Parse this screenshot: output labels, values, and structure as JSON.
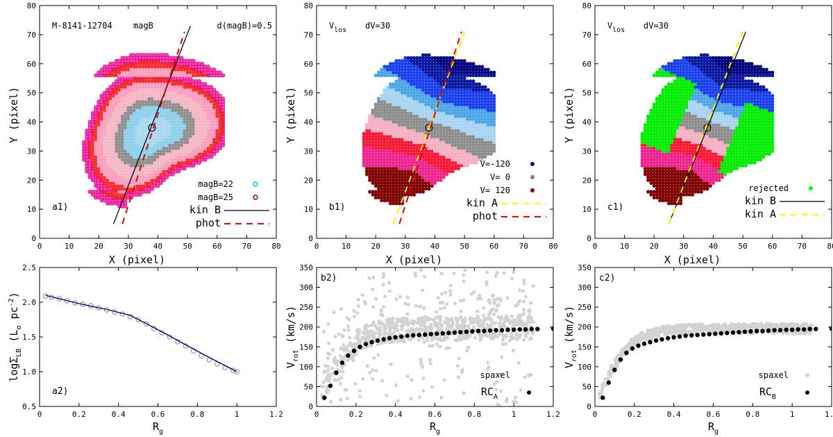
{
  "chart_data": [
    {
      "id": "a1",
      "type": "scatter",
      "panel_label": "a1)",
      "annotations": [
        "M-8141-12704",
        "magB",
        "d(magB)=0.5"
      ],
      "xlabel": "X  (pixel)",
      "ylabel": "Y  (pixel)",
      "xlim": [
        0,
        80
      ],
      "ylim": [
        0,
        80
      ],
      "xticks": [
        0,
        10,
        20,
        30,
        40,
        50,
        60,
        70,
        80
      ],
      "yticks": [
        0,
        10,
        20,
        30,
        40,
        50,
        60,
        70,
        80
      ],
      "center": [
        38,
        38
      ],
      "map": {
        "kind": "isophote",
        "rings": 7,
        "colors": [
          "#a9d8f0",
          "#8fd0ea",
          "#909090",
          "#f4b8c4",
          "#ff9fc0",
          "#ff3030",
          "#ff40c0"
        ]
      },
      "legend_position": "bottom-right",
      "legend": [
        {
          "label": "magB=22",
          "marker": "open-circle",
          "color": "#00bfff"
        },
        {
          "label": "magB=25",
          "marker": "open-circle",
          "color": "#8b0000"
        },
        {
          "label": "kin B",
          "line": "solid",
          "color": "#000000"
        },
        {
          "label": "phot",
          "line": "dashed",
          "color": "#ff0000"
        }
      ],
      "lines": [
        {
          "name": "kin B",
          "style": "solid",
          "color": "#000000",
          "x": [
            25,
            51
          ],
          "y": [
            5,
            73
          ]
        },
        {
          "name": "phot",
          "style": "dashed",
          "color": "#e00000",
          "x": [
            28,
            49
          ],
          "y": [
            5,
            71
          ]
        }
      ]
    },
    {
      "id": "b1",
      "type": "scatter",
      "panel_label": "b1)",
      "annotations": [
        "V",
        "los",
        "dV=30"
      ],
      "xlabel": "X  (pixel)",
      "ylabel": "Y  (pixel)",
      "xlim": [
        0,
        80
      ],
      "ylim": [
        0,
        80
      ],
      "xticks": [
        0,
        10,
        20,
        30,
        40,
        50,
        60,
        70,
        80
      ],
      "yticks": [
        0,
        10,
        20,
        30,
        40,
        50,
        60,
        70,
        80
      ],
      "center": [
        38,
        38
      ],
      "map": {
        "kind": "velocity",
        "rejected": false
      },
      "legend_position": "bottom-right",
      "legend": [
        {
          "label": "V=-120",
          "marker": "filled-circle",
          "color": "#00007f"
        },
        {
          "label": "V=   0",
          "marker": "filled-circle",
          "color": "#808080"
        },
        {
          "label": "V= 120",
          "marker": "filled-circle",
          "color": "#7f0000"
        },
        {
          "label": "kin A",
          "line": "dashed",
          "color": "#ffff00"
        },
        {
          "label": "phot",
          "line": "dashed",
          "color": "#ff0000"
        }
      ],
      "lines": [
        {
          "name": "kin A",
          "style": "dashed",
          "color": "#ffee00",
          "x": [
            26,
            50
          ],
          "y": [
            5,
            71
          ]
        },
        {
          "name": "phot",
          "style": "dashed",
          "color": "#e00000",
          "x": [
            28,
            49
          ],
          "y": [
            5,
            71
          ]
        }
      ]
    },
    {
      "id": "c1",
      "type": "scatter",
      "panel_label": "c1)",
      "annotations": [
        "V",
        "los",
        "dV=30"
      ],
      "xlabel": "X  (pixel)",
      "ylabel": "Y  (pixel)",
      "xlim": [
        0,
        80
      ],
      "ylim": [
        0,
        80
      ],
      "xticks": [
        0,
        10,
        20,
        30,
        40,
        50,
        60,
        70,
        80
      ],
      "yticks": [
        0,
        10,
        20,
        30,
        40,
        50,
        60,
        70,
        80
      ],
      "center": [
        38,
        38
      ],
      "map": {
        "kind": "velocity",
        "rejected": true
      },
      "legend_position": "bottom-right",
      "legend": [
        {
          "label": "rejected",
          "marker": "filled-circle",
          "color": "#00ff00"
        },
        {
          "label": "kin B",
          "line": "solid",
          "color": "#000000"
        },
        {
          "label": "kin A",
          "line": "dashed",
          "color": "#ffff00"
        }
      ],
      "lines": [
        {
          "name": "kin B",
          "style": "solid",
          "color": "#000000",
          "x": [
            25,
            51
          ],
          "y": [
            5,
            71
          ]
        },
        {
          "name": "kin A",
          "style": "dashed",
          "color": "#ffee00",
          "x": [
            25,
            50
          ],
          "y": [
            5,
            71
          ]
        }
      ]
    },
    {
      "id": "a2",
      "type": "line",
      "panel_label": "a2)",
      "xlabel": "R",
      "xlabel_sub": "g",
      "ylabel": "logΣ",
      "ylabel_sub": "LB",
      "ylabel_unit": "(L",
      "ylabel_unit_sub": "o",
      "ylabel_unit_rest": " pc",
      "ylabel_unit_sup": "-2",
      "ylabel_unit_close": ")",
      "xlim": [
        0,
        1.2
      ],
      "ylim": [
        0.5,
        2.5
      ],
      "xticks": [
        0,
        0.2,
        0.4,
        0.6,
        0.8,
        1,
        1.2
      ],
      "yticks": [
        0.5,
        1,
        1.5,
        2,
        2.5
      ],
      "series": [
        {
          "kind": "points",
          "x": [
            0.03,
            0.06,
            0.1,
            0.14,
            0.18,
            0.22,
            0.26,
            0.3,
            0.34,
            0.38,
            0.42,
            0.46,
            0.5,
            0.54,
            0.58,
            0.62,
            0.66,
            0.7,
            0.74,
            0.78,
            0.82,
            0.86,
            0.9,
            0.94,
            0.98,
            1.0
          ],
          "y": [
            2.09,
            2.07,
            2.05,
            2.02,
            1.99,
            1.97,
            1.95,
            1.92,
            1.89,
            1.86,
            1.83,
            1.79,
            1.75,
            1.69,
            1.62,
            1.56,
            1.5,
            1.43,
            1.37,
            1.3,
            1.23,
            1.17,
            1.11,
            1.06,
            1.02,
            1.0
          ]
        },
        {
          "kind": "line",
          "color": "#00007f",
          "x": [
            0.03,
            0.2,
            0.35,
            0.46,
            0.55,
            0.7,
            0.85,
            1.0
          ],
          "y": [
            2.1,
            1.98,
            1.89,
            1.81,
            1.68,
            1.45,
            1.22,
            1.0
          ]
        }
      ]
    },
    {
      "id": "b2",
      "type": "scatter",
      "panel_label": "b2)",
      "xlabel": "R",
      "xlabel_sub": "g",
      "ylabel": "V",
      "ylabel_sub": "rot",
      "ylabel_unit": "(km/s)",
      "xlim": [
        0,
        1.2
      ],
      "ylim": [
        0,
        350
      ],
      "xticks": [
        0,
        0.2,
        0.4,
        0.6,
        0.8,
        1,
        1.2
      ],
      "yticks": [
        0,
        50,
        100,
        150,
        200,
        250,
        300,
        350
      ],
      "legend_position": "bottom-right",
      "legend": [
        {
          "label": "spaxel",
          "color": "#d3d3d3"
        },
        {
          "label": "RC",
          "sub": "A",
          "color": "#000000"
        }
      ],
      "scatter_spread": "wide",
      "rc": {
        "x": [
          0.04,
          0.07,
          0.1,
          0.13,
          0.16,
          0.19,
          0.22,
          0.25,
          0.28,
          0.31,
          0.34,
          0.37,
          0.4,
          0.43,
          0.46,
          0.49,
          0.52,
          0.55,
          0.58,
          0.61,
          0.64,
          0.67,
          0.7,
          0.73,
          0.76,
          0.79,
          0.82,
          0.85,
          0.88,
          0.91,
          0.94,
          0.97,
          1.0,
          1.03,
          1.06,
          1.09,
          1.12,
          1.2
        ],
        "y": [
          22,
          52,
          85,
          110,
          128,
          140,
          150,
          157,
          162,
          166,
          169,
          172,
          174,
          176,
          178,
          179,
          180,
          181,
          182,
          183,
          184,
          185,
          186,
          187,
          188,
          189,
          190,
          190,
          191,
          192,
          192,
          193,
          193,
          194,
          194,
          195,
          195,
          196
        ]
      }
    },
    {
      "id": "c2",
      "type": "scatter",
      "panel_label": "c2)",
      "xlabel": "R",
      "xlabel_sub": "g",
      "ylabel": "V",
      "ylabel_sub": "rot",
      "ylabel_unit": "(km/s)",
      "xlim": [
        0,
        1.2
      ],
      "ylim": [
        0,
        350
      ],
      "xticks": [
        0,
        0.2,
        0.4,
        0.6,
        0.8,
        1,
        1.2
      ],
      "yticks": [
        0,
        50,
        100,
        150,
        200,
        250,
        300,
        350
      ],
      "legend_position": "bottom-right",
      "legend": [
        {
          "label": "spaxel",
          "color": "#d3d3d3"
        },
        {
          "label": "RC",
          "sub": "B",
          "color": "#000000"
        }
      ],
      "scatter_spread": "tight",
      "rc": {
        "x": [
          0.04,
          0.07,
          0.1,
          0.13,
          0.16,
          0.19,
          0.22,
          0.25,
          0.28,
          0.31,
          0.34,
          0.37,
          0.4,
          0.43,
          0.46,
          0.49,
          0.52,
          0.55,
          0.58,
          0.61,
          0.64,
          0.67,
          0.7,
          0.73,
          0.76,
          0.79,
          0.82,
          0.85,
          0.88,
          0.91,
          0.94,
          0.97,
          1.0,
          1.03,
          1.06,
          1.09,
          1.12,
          1.2
        ],
        "y": [
          22,
          60,
          92,
          118,
          135,
          146,
          153,
          158,
          162,
          166,
          169,
          172,
          174,
          176,
          178,
          179,
          180,
          181,
          182,
          183,
          184,
          185,
          186,
          187,
          188,
          189,
          190,
          190,
          191,
          192,
          192,
          193,
          193,
          194,
          194,
          195,
          195,
          196
        ]
      }
    }
  ]
}
